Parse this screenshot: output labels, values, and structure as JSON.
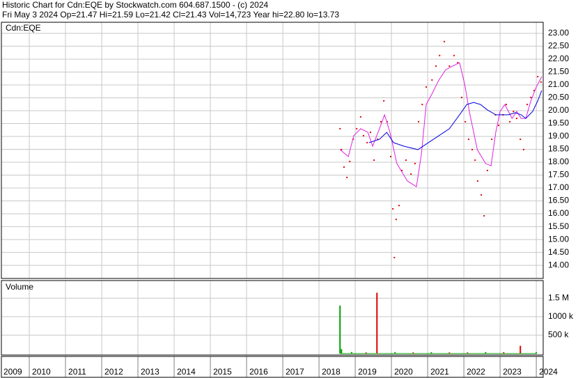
{
  "header": {
    "title": "Historic Chart for Cdn:EQE by Stockwatch.com 604.687.1500 - (c) 2024",
    "quote": "Fri May  3 2024  Op=21.47  Hi=21.59  Lo=21.42  Cl=21.43  Vol=14,723  Year hi=22.80  lo=13.73"
  },
  "chart_data": [
    {
      "type": "line",
      "label": "Cdn:EQE",
      "grid": true,
      "xlim": [
        2009.23,
        2024.19
      ],
      "ylim": [
        13.49,
        23.43
      ],
      "xticks": [
        2009,
        2010,
        2011,
        2012,
        2013,
        2014,
        2015,
        2016,
        2017,
        2018,
        2019,
        2020,
        2021,
        2022,
        2023,
        2024
      ],
      "yticks": [
        {
          "value": 14,
          "label": "14.00"
        },
        {
          "value": 14.5,
          "label": "14.50"
        },
        {
          "value": 15,
          "label": "15.00"
        },
        {
          "value": 15.5,
          "label": "15.50"
        },
        {
          "value": 16,
          "label": "16.00"
        },
        {
          "value": 16.5,
          "label": "16.50"
        },
        {
          "value": 17,
          "label": "17.00"
        },
        {
          "value": 17.5,
          "label": "17.50"
        },
        {
          "value": 18,
          "label": "18.00"
        },
        {
          "value": 18.5,
          "label": "18.50"
        },
        {
          "value": 19,
          "label": "19.00"
        },
        {
          "value": 19.5,
          "label": "19.50"
        },
        {
          "value": 20,
          "label": "20.00"
        },
        {
          "value": 20.5,
          "label": "20.50"
        },
        {
          "value": 21,
          "label": "21.00"
        },
        {
          "value": 21.5,
          "label": "21.50"
        },
        {
          "value": 22,
          "label": "22.00"
        },
        {
          "value": 22.5,
          "label": "22.50"
        },
        {
          "value": 23,
          "label": "23.00"
        }
      ],
      "series": [
        {
          "mode": "markers",
          "color": "#e00000",
          "x": [
            2018.58,
            2018.62,
            2018.69,
            2018.77,
            2018.85,
            2018.94,
            2019.04,
            2019.15,
            2019.23,
            2019.33,
            2019.42,
            2019.52,
            2019.62,
            2019.71,
            2019.79,
            2019.88,
            2019.98,
            2020.04,
            2020.08,
            2020.13,
            2020.21,
            2020.29,
            2020.4,
            2020.54,
            2020.65,
            2020.75,
            2020.85,
            2020.96,
            2021.12,
            2021.23,
            2021.33,
            2021.46,
            2021.6,
            2021.73,
            2021.83,
            2021.94,
            2022.04,
            2022.13,
            2022.23,
            2022.31,
            2022.38,
            2022.48,
            2022.56,
            2022.65,
            2022.77,
            2022.87,
            2022.96,
            2023.08,
            2023.17,
            2023.27,
            2023.37,
            2023.46,
            2023.56,
            2023.65,
            2023.75,
            2023.85,
            2023.94,
            2024.04,
            2024.13
          ],
          "values": [
            19.3,
            18.49,
            17.81,
            17.41,
            18.03,
            18.89,
            19.3,
            19.76,
            19.03,
            18.76,
            19.16,
            18.08,
            18.89,
            19.57,
            20.38,
            19.57,
            18.22,
            16.19,
            14.3,
            15.78,
            16.32,
            17.68,
            18.08,
            17.54,
            17.95,
            19.57,
            20.24,
            20.92,
            21.19,
            21.73,
            22.14,
            22.68,
            21.73,
            22.14,
            21.86,
            20.51,
            19.57,
            18.89,
            18.49,
            18.08,
            17.27,
            16.73,
            15.92,
            17.68,
            18.89,
            19.84,
            19.43,
            19.84,
            20.24,
            19.57,
            19.97,
            19.7,
            18.89,
            18.49,
            20.24,
            20.51,
            20.78,
            21.32,
            21.11
          ]
        },
        {
          "mode": "line",
          "color": "#e020e0",
          "x": [
            2018.58,
            2018.81,
            2018.96,
            2019.15,
            2019.35,
            2019.48,
            2019.67,
            2019.81,
            2019.96,
            2020.15,
            2020.44,
            2020.69,
            2020.83,
            2020.96,
            2021.12,
            2021.31,
            2021.5,
            2021.69,
            2021.88,
            2022.02,
            2022.17,
            2022.37,
            2022.6,
            2022.75,
            2022.88,
            2023.0,
            2023.13,
            2023.33,
            2023.46,
            2023.58,
            2023.71,
            2023.85,
            2024.0,
            2024.15
          ],
          "values": [
            18.49,
            18.22,
            19.03,
            19.3,
            19.16,
            18.62,
            19.3,
            19.84,
            19.16,
            17.95,
            17.27,
            17.05,
            18.35,
            20.24,
            20.65,
            21.19,
            21.59,
            21.73,
            21.86,
            21.05,
            19.84,
            18.49,
            17.95,
            17.86,
            19.16,
            19.97,
            20.24,
            19.7,
            19.97,
            19.7,
            19.7,
            20.38,
            20.92,
            21.32
          ]
        },
        {
          "mode": "line",
          "color": "#0000e0",
          "x": [
            2019.38,
            2019.67,
            2019.87,
            2020.06,
            2020.35,
            2020.73,
            2021.02,
            2021.31,
            2021.6,
            2021.88,
            2022.08,
            2022.27,
            2022.46,
            2022.65,
            2022.88,
            2023.04,
            2023.23,
            2023.42,
            2023.58,
            2023.71,
            2023.9,
            2024.04,
            2024.15
          ],
          "values": [
            18.76,
            18.89,
            19.16,
            18.76,
            18.62,
            18.49,
            18.76,
            19.03,
            19.3,
            19.84,
            20.24,
            20.32,
            20.24,
            20.03,
            19.84,
            19.84,
            19.84,
            19.92,
            19.84,
            19.7,
            19.97,
            20.38,
            20.78
          ]
        }
      ]
    },
    {
      "type": "bar",
      "label": "Volume",
      "grid": true,
      "xlim": [
        2009.23,
        2024.19
      ],
      "ylim": [
        -40000,
        1980000
      ],
      "xticks": [
        2009,
        2010,
        2011,
        2012,
        2013,
        2014,
        2015,
        2016,
        2017,
        2018,
        2019,
        2020,
        2021,
        2022,
        2023,
        2024
      ],
      "yticks": [
        {
          "value": 500000,
          "label": "500 k"
        },
        {
          "value": 1000000,
          "label": "1000 k"
        },
        {
          "value": 1500000,
          "label": "1.5 M"
        }
      ],
      "x": [
        2018.58,
        2018.62,
        2018.9,
        2019.3,
        2019.6,
        2020.1,
        2020.6,
        2021.1,
        2021.6,
        2022.1,
        2022.6,
        2023.1,
        2023.56,
        2024.0
      ],
      "values": [
        1300000,
        120000,
        40000,
        30000,
        1650000,
        40000,
        30000,
        35000,
        30000,
        30000,
        40000,
        35000,
        210000,
        40000
      ],
      "colors": [
        "#00a000",
        "#00a000",
        "#00a000",
        "#e00000",
        "#e00000",
        "#00a000",
        "#e00000",
        "#00a000",
        "#e00000",
        "#e00000",
        "#00a000",
        "#e00000",
        "#e00000",
        "#00a000"
      ]
    }
  ]
}
